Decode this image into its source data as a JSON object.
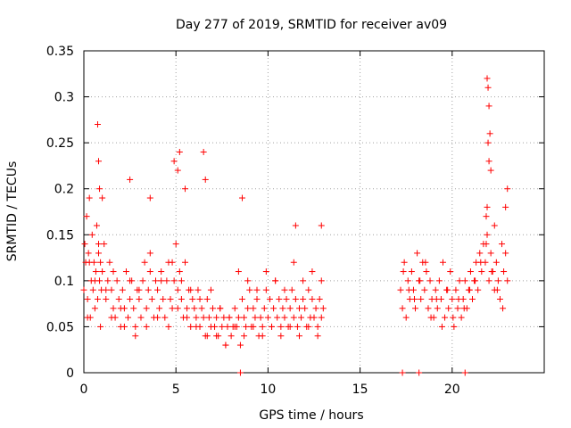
{
  "chart_data": {
    "type": "scatter",
    "title": "Day 277 of 2019, SRMTID for receiver av09",
    "xlabel": "GPS time / hours",
    "ylabel": "SRMTID / TECUs",
    "xlim": [
      0,
      25
    ],
    "ylim": [
      0,
      0.35
    ],
    "xticks": [
      0,
      5,
      10,
      15,
      20
    ],
    "yticks": [
      0,
      0.05,
      0.1,
      0.15,
      0.2,
      0.25,
      0.3,
      0.35
    ],
    "xtick_labels": [
      "0",
      "5",
      "10",
      "15",
      "20"
    ],
    "ytick_labels": [
      "0",
      "0.05",
      "0.1",
      "0.15",
      "0.2",
      "0.25",
      "0.3",
      "0.35"
    ],
    "grid": true,
    "marker": "+",
    "color": "#ff0000",
    "series": [
      {
        "name": "SRMTID",
        "x": [
          0.0,
          0.05,
          0.1,
          0.15,
          0.2,
          0.25,
          0.3,
          0.35,
          0.4,
          0.45,
          0.5,
          0.55,
          0.6,
          0.65,
          0.7,
          0.75,
          0.8,
          0.85,
          0.9,
          0.95,
          1.0,
          1.1,
          1.2,
          1.3,
          1.4,
          1.5,
          1.6,
          1.7,
          1.8,
          1.9,
          2.0,
          2.1,
          2.2,
          2.3,
          2.4,
          2.5,
          2.6,
          2.7,
          2.8,
          2.9,
          3.0,
          3.1,
          3.2,
          3.3,
          3.4,
          3.5,
          3.6,
          3.7,
          3.8,
          3.9,
          4.0,
          4.1,
          4.2,
          4.3,
          4.4,
          4.5,
          4.6,
          4.7,
          4.8,
          4.9,
          5.0,
          5.1,
          5.2,
          5.3,
          5.4,
          5.5,
          5.6,
          5.7,
          5.8,
          5.9,
          6.0,
          6.1,
          6.2,
          6.3,
          6.4,
          6.5,
          6.6,
          6.7,
          6.8,
          6.9,
          7.0,
          7.1,
          7.2,
          7.3,
          7.4,
          7.5,
          7.6,
          7.7,
          7.8,
          7.9,
          8.0,
          8.1,
          8.2,
          8.3,
          8.4,
          8.5,
          8.6,
          8.7,
          8.8,
          8.9,
          9.0,
          9.1,
          9.2,
          9.3,
          9.4,
          9.5,
          9.6,
          9.7,
          9.8,
          9.9,
          10.0,
          10.1,
          10.2,
          10.3,
          10.4,
          10.5,
          10.6,
          10.7,
          10.8,
          10.9,
          11.0,
          11.1,
          11.2,
          11.3,
          11.4,
          11.5,
          11.6,
          11.7,
          11.8,
          11.9,
          12.0,
          12.1,
          12.2,
          12.3,
          12.4,
          12.5,
          12.6,
          12.7,
          12.8,
          12.9,
          13.0,
          0.3,
          0.6,
          0.8,
          1.2,
          1.6,
          2.0,
          2.5,
          3.0,
          3.6,
          4.2,
          4.8,
          5.3,
          5.8,
          6.3,
          6.9,
          7.4,
          7.9,
          8.4,
          8.9,
          9.4,
          9.9,
          10.4,
          10.9,
          11.4,
          11.9,
          12.4,
          12.9,
          0.2,
          0.9,
          1.5,
          2.2,
          2.8,
          3.4,
          4.0,
          4.6,
          5.1,
          5.6,
          6.1,
          6.7,
          7.2,
          7.7,
          8.2,
          8.7,
          9.2,
          9.7,
          10.2,
          10.7,
          11.2,
          11.7,
          12.2,
          12.7,
          0.75,
          0.8,
          0.85,
          1.0,
          2.5,
          3.6,
          4.9,
          5.1,
          5.2,
          5.5,
          6.5,
          6.6,
          8.6,
          11.5,
          12.9,
          17.2,
          17.3,
          17.4,
          17.5,
          17.6,
          17.7,
          17.8,
          17.9,
          18.0,
          18.1,
          18.2,
          18.3,
          18.4,
          18.5,
          18.6,
          18.7,
          18.8,
          18.9,
          19.0,
          19.1,
          19.2,
          19.3,
          19.4,
          19.5,
          19.6,
          19.7,
          19.8,
          19.9,
          20.0,
          20.1,
          20.2,
          20.3,
          20.4,
          20.5,
          20.6,
          20.7,
          20.8,
          20.9,
          21.0,
          21.1,
          21.2,
          21.3,
          21.4,
          21.5,
          21.6,
          21.7,
          21.8,
          21.9,
          22.0,
          22.1,
          22.2,
          22.3,
          22.4,
          22.5,
          22.6,
          22.7,
          22.8,
          22.9,
          23.0,
          17.35,
          17.65,
          17.95,
          18.25,
          18.55,
          18.85,
          19.15,
          19.45,
          19.75,
          20.05,
          20.35,
          20.65,
          20.95,
          21.25,
          21.55,
          21.85,
          22.15,
          22.45,
          22.75,
          21.9,
          21.95,
          22.0,
          22.05,
          21.95,
          22.0,
          22.1,
          21.9,
          21.85,
          22.3,
          22.9,
          23.0,
          8.5,
          17.3,
          18.2,
          20.7
        ],
        "y": [
          0.09,
          0.14,
          0.12,
          0.17,
          0.08,
          0.13,
          0.19,
          0.06,
          0.1,
          0.15,
          0.09,
          0.12,
          0.07,
          0.11,
          0.16,
          0.08,
          0.13,
          0.1,
          0.12,
          0.09,
          0.11,
          0.14,
          0.08,
          0.1,
          0.12,
          0.09,
          0.07,
          0.06,
          0.1,
          0.08,
          0.05,
          0.09,
          0.07,
          0.11,
          0.06,
          0.08,
          0.1,
          0.07,
          0.05,
          0.09,
          0.08,
          0.06,
          0.1,
          0.12,
          0.07,
          0.09,
          0.13,
          0.08,
          0.06,
          0.1,
          0.09,
          0.07,
          0.11,
          0.08,
          0.06,
          0.1,
          0.12,
          0.08,
          0.07,
          0.1,
          0.14,
          0.09,
          0.11,
          0.08,
          0.06,
          0.12,
          0.07,
          0.09,
          0.05,
          0.08,
          0.07,
          0.06,
          0.09,
          0.05,
          0.07,
          0.06,
          0.04,
          0.08,
          0.06,
          0.05,
          0.07,
          0.05,
          0.06,
          0.04,
          0.07,
          0.05,
          0.06,
          0.03,
          0.05,
          0.06,
          0.04,
          0.05,
          0.07,
          0.05,
          0.06,
          0.03,
          0.08,
          0.06,
          0.05,
          0.07,
          0.09,
          0.05,
          0.07,
          0.06,
          0.08,
          0.04,
          0.06,
          0.05,
          0.07,
          0.09,
          0.06,
          0.08,
          0.05,
          0.07,
          0.1,
          0.06,
          0.08,
          0.05,
          0.07,
          0.06,
          0.08,
          0.05,
          0.07,
          0.09,
          0.06,
          0.08,
          0.05,
          0.07,
          0.06,
          0.08,
          0.07,
          0.05,
          0.09,
          0.06,
          0.08,
          0.06,
          0.07,
          0.05,
          0.08,
          0.06,
          0.07,
          0.12,
          0.1,
          0.14,
          0.09,
          0.11,
          0.07,
          0.1,
          0.09,
          0.11,
          0.1,
          0.12,
          0.1,
          0.09,
          0.08,
          0.09,
          0.07,
          0.06,
          0.11,
          0.1,
          0.09,
          0.11,
          0.1,
          0.09,
          0.12,
          0.1,
          0.11,
          0.1,
          0.06,
          0.05,
          0.06,
          0.05,
          0.04,
          0.05,
          0.06,
          0.05,
          0.07,
          0.06,
          0.05,
          0.04,
          0.04,
          0.03,
          0.05,
          0.04,
          0.05,
          0.04,
          0.05,
          0.04,
          0.05,
          0.04,
          0.05,
          0.04,
          0.27,
          0.23,
          0.2,
          0.19,
          0.21,
          0.19,
          0.23,
          0.22,
          0.24,
          0.2,
          0.24,
          0.21,
          0.19,
          0.16,
          0.16,
          0.09,
          0.07,
          0.12,
          0.06,
          0.1,
          0.08,
          0.11,
          0.09,
          0.07,
          0.13,
          0.1,
          0.08,
          0.12,
          0.09,
          0.11,
          0.07,
          0.1,
          0.08,
          0.06,
          0.09,
          0.07,
          0.1,
          0.08,
          0.12,
          0.06,
          0.09,
          0.07,
          0.11,
          0.08,
          0.05,
          0.09,
          0.07,
          0.1,
          0.06,
          0.08,
          0.1,
          0.07,
          0.09,
          0.11,
          0.08,
          0.1,
          0.12,
          0.09,
          0.13,
          0.11,
          0.14,
          0.12,
          0.15,
          0.1,
          0.13,
          0.11,
          0.09,
          0.12,
          0.1,
          0.08,
          0.14,
          0.11,
          0.13,
          0.1,
          0.11,
          0.09,
          0.08,
          0.1,
          0.12,
          0.06,
          0.08,
          0.05,
          0.09,
          0.06,
          0.08,
          0.07,
          0.09,
          0.1,
          0.12,
          0.14,
          0.11,
          0.09,
          0.07,
          0.32,
          0.31,
          0.29,
          0.26,
          0.25,
          0.23,
          0.22,
          0.18,
          0.17,
          0.16,
          0.18,
          0.2,
          0.0,
          0.0,
          0.0,
          0.0
        ]
      }
    ]
  }
}
